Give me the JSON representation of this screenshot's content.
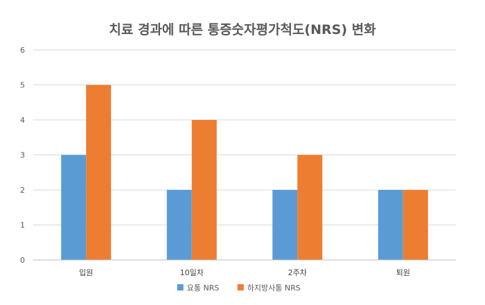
{
  "chart_data": {
    "type": "bar",
    "title": "치료 경과에 따른 통증숫자평가척도(NRS) 변화",
    "xlabel": "",
    "ylabel": "",
    "categories": [
      "입원",
      "10일차",
      "2주차",
      "퇴원"
    ],
    "series": [
      {
        "name": "요통 NRS",
        "values": [
          3,
          2,
          2,
          2
        ],
        "color": "#5b9bd5"
      },
      {
        "name": "하지방사통 NRS",
        "values": [
          5,
          4,
          3,
          2
        ],
        "color": "#ed7d31"
      }
    ],
    "ylim": [
      0,
      6
    ],
    "yticks": [
      0,
      1,
      2,
      3,
      4,
      5,
      6
    ],
    "grid": true,
    "legend": "bottom"
  }
}
